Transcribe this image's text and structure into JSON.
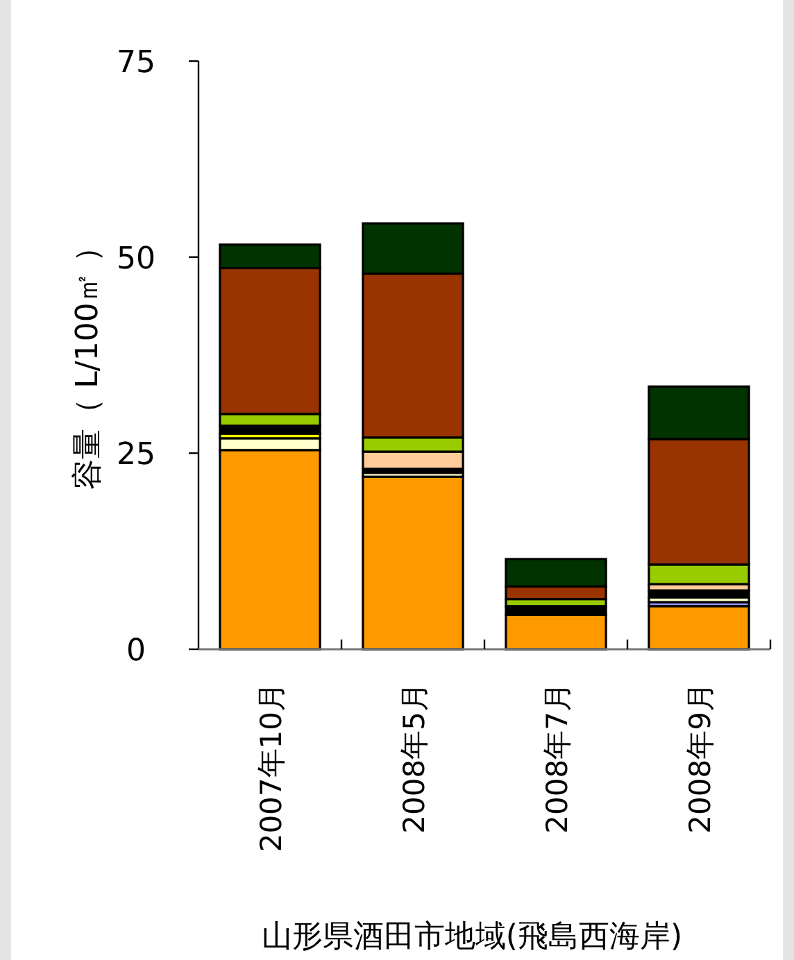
{
  "chart_data": {
    "type": "bar",
    "stacked": true,
    "xlabel": "山形県酒田市地域(飛島西海岸)",
    "ylabel": "容量（ L/100㎡ ）",
    "categories": [
      "2007年10月",
      "2008年5月",
      "2008年7月",
      "2008年9月"
    ],
    "ylim": [
      0,
      75
    ],
    "yticks": [
      0,
      25,
      50,
      75
    ],
    "grid": false,
    "series": [
      {
        "color": "#ff9900",
        "values": [
          25.4,
          22.0,
          4.4,
          5.5
        ]
      },
      {
        "color": "#9999ff",
        "values": [
          0,
          0,
          0,
          0.5
        ]
      },
      {
        "color": "#ffffcc",
        "values": [
          1.5,
          0.5,
          0,
          0.6
        ]
      },
      {
        "color": "#ffff00",
        "values": [
          0.6,
          0,
          0,
          0
        ]
      },
      {
        "color": "#000000",
        "values": [
          1.0,
          0.5,
          1.1,
          0.9
        ]
      },
      {
        "color": "#ffcc99",
        "values": [
          0,
          2.2,
          0,
          0.8
        ]
      },
      {
        "color": "#99cc00",
        "values": [
          1.5,
          1.8,
          0.9,
          2.5
        ]
      },
      {
        "color": "#993300",
        "values": [
          18.6,
          20.9,
          1.6,
          16.0
        ]
      },
      {
        "color": "#003300",
        "values": [
          3.0,
          6.4,
          3.5,
          6.7
        ]
      }
    ]
  }
}
